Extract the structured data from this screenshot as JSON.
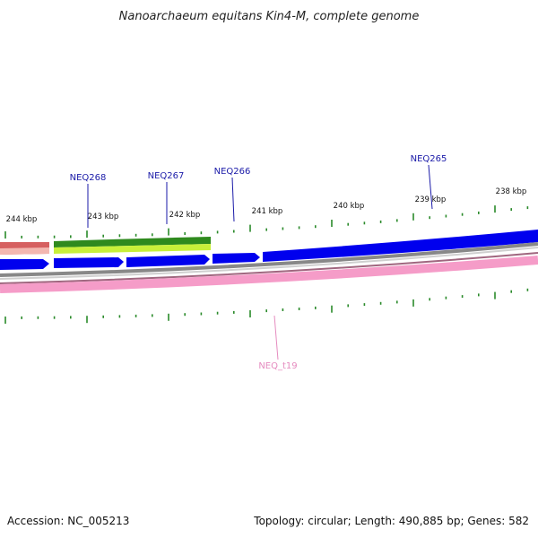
{
  "title": "Nanoarchaeum equitans Kin4-M, complete genome",
  "accession": "Accession: NC_005213",
  "summary": "Topology: circular; Length: 490,885 bp; Genes: 582",
  "scale_labels": [
    "244 kbp",
    "243 kbp",
    "242 kbp",
    "241 kbp",
    "240 kbp",
    "239 kbp",
    "238 kbp"
  ],
  "genes_top": [
    "NEQ268",
    "NEQ267",
    "NEQ266",
    "NEQ265"
  ],
  "genes_bottom": [
    "NEQ_t19"
  ],
  "colors": {
    "cds": "#0000ee",
    "gene_label": "#1a1aa8",
    "trna_label": "#e58bbf",
    "tick": "#2a8a2a",
    "green_band": "#4aa832",
    "lime_band": "#c8ef3a",
    "red_band": "#d66060",
    "pink_band": "#f59cc8",
    "grey_band": "#888888"
  }
}
